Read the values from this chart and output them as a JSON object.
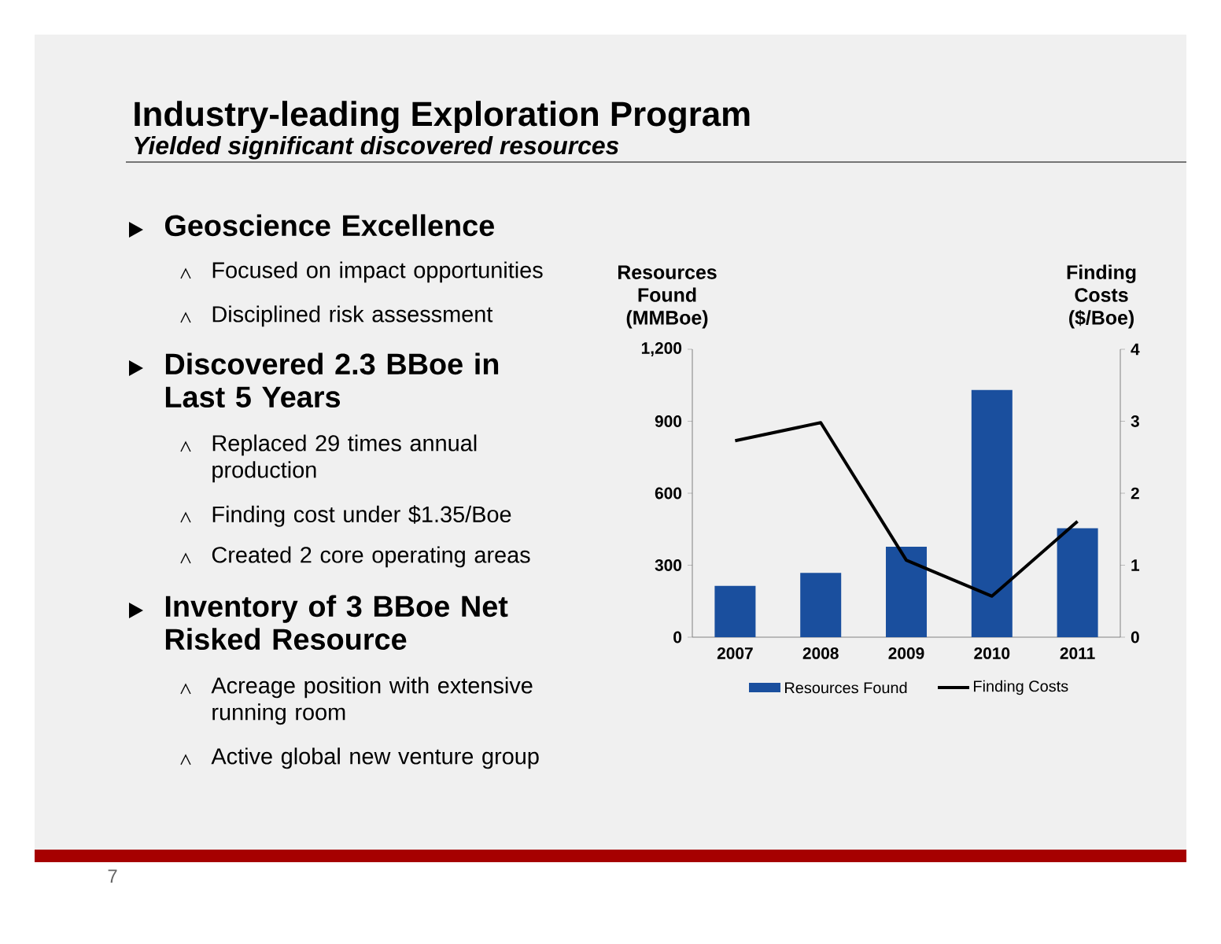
{
  "chart_data": {
    "type": "bar",
    "title": "Industry-leading Exploration Program",
    "subtitle": "Yielded significant discovered resources",
    "ylabel": "Resources Found (MMBoe)",
    "y2label": "Finding Costs ($/Boe)",
    "categories": [
      "2007",
      "2008",
      "2009",
      "2010",
      "2011"
    ],
    "series": [
      {
        "name": "Resources Found",
        "type": "bar",
        "color": "#1a4f9e",
        "values": [
          214,
          268,
          377,
          1030,
          454
        ]
      },
      {
        "name": "Finding Costs",
        "type": "line",
        "axis": "y2",
        "color": "#000000",
        "values": [
          2.73,
          2.98,
          1.07,
          0.57,
          1.61
        ]
      }
    ],
    "ylim": [
      0,
      1200
    ],
    "yticks": [
      0,
      300,
      600,
      900,
      {
        "value": 1200,
        "label": "1,200"
      }
    ],
    "y2lim": [
      0,
      4
    ],
    "y2ticks": [
      0,
      1,
      2,
      3,
      4
    ],
    "legend": "bottom",
    "annotations": [
      "Geoscience Excellence",
      "Focused on impact opportunities",
      "Disciplined risk assessment",
      "Discovered 2.3 BBoe in Last 5 Years",
      "Replaced 29 times annual production",
      "Finding cost under $1.35/Boe",
      "Created 2 core operating areas",
      "Inventory of 3 BBoe Net Risked Resource",
      "Acreage position with extensive running room",
      "Active global new venture group",
      "7"
    ]
  }
}
